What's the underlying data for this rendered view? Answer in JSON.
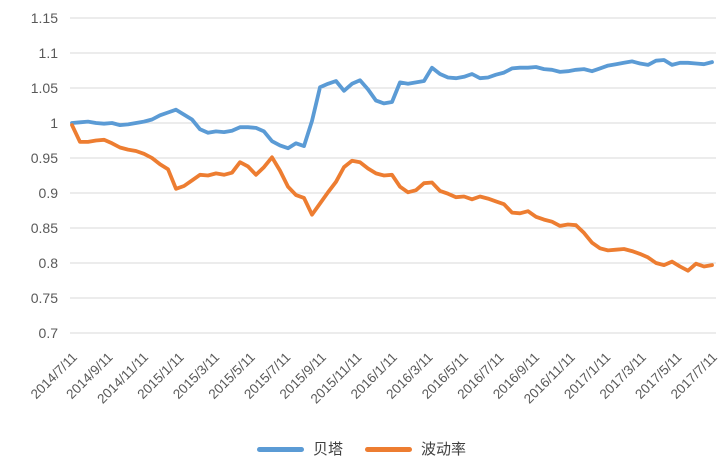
{
  "chart_data": {
    "type": "line",
    "title": "",
    "ylim": [
      0.7,
      1.15
    ],
    "y_ticks": [
      1.15,
      1.1,
      1.05,
      1,
      0.95,
      0.9,
      0.85,
      0.8,
      0.75,
      0.7
    ],
    "x_tick_labels": [
      "2014/7/11",
      "2014/9/11",
      "2014/11/11",
      "2015/1/11",
      "2015/3/11",
      "2015/5/11",
      "2015/7/11",
      "2015/9/11",
      "2015/11/11",
      "2016/1/11",
      "2016/3/11",
      "2016/5/11",
      "2016/7/11",
      "2016/9/11",
      "2016/11/11",
      "2017/1/11",
      "2017/3/11",
      "2017/5/11",
      "2017/7/11"
    ],
    "grid": true,
    "legend_position": "bottom",
    "series": [
      {
        "key": "beta",
        "name": "贝塔",
        "color": "#5B9BD5",
        "values": [
          1.0,
          1.001,
          1.002,
          1.0,
          0.999,
          1.0,
          0.997,
          0.998,
          1.0,
          1.002,
          1.005,
          1.011,
          1.015,
          1.019,
          1.012,
          1.005,
          0.991,
          0.986,
          0.988,
          0.987,
          0.989,
          0.994,
          0.994,
          0.993,
          0.988,
          0.974,
          0.968,
          0.964,
          0.971,
          0.967,
          1.003,
          1.051,
          1.056,
          1.06,
          1.046,
          1.056,
          1.061,
          1.048,
          1.032,
          1.028,
          1.03,
          1.058,
          1.056,
          1.058,
          1.06,
          1.079,
          1.07,
          1.065,
          1.064,
          1.066,
          1.07,
          1.064,
          1.065,
          1.069,
          1.072,
          1.078,
          1.079,
          1.079,
          1.08,
          1.077,
          1.076,
          1.073,
          1.074,
          1.076,
          1.077,
          1.074,
          1.078,
          1.082,
          1.084,
          1.086,
          1.088,
          1.085,
          1.083,
          1.089,
          1.09,
          1.083,
          1.086,
          1.086,
          1.085,
          1.084,
          1.087
        ]
      },
      {
        "key": "volatility",
        "name": "波动率",
        "color": "#ED7D31",
        "values": [
          0.997,
          0.973,
          0.973,
          0.975,
          0.976,
          0.971,
          0.965,
          0.962,
          0.96,
          0.956,
          0.95,
          0.941,
          0.934,
          0.906,
          0.91,
          0.918,
          0.926,
          0.925,
          0.928,
          0.926,
          0.929,
          0.944,
          0.938,
          0.926,
          0.937,
          0.951,
          0.932,
          0.909,
          0.897,
          0.893,
          0.869,
          0.885,
          0.901,
          0.916,
          0.937,
          0.946,
          0.944,
          0.935,
          0.928,
          0.925,
          0.926,
          0.909,
          0.901,
          0.904,
          0.914,
          0.915,
          0.903,
          0.899,
          0.894,
          0.895,
          0.891,
          0.895,
          0.892,
          0.888,
          0.884,
          0.872,
          0.871,
          0.874,
          0.866,
          0.862,
          0.859,
          0.853,
          0.855,
          0.854,
          0.843,
          0.829,
          0.821,
          0.818,
          0.819,
          0.82,
          0.817,
          0.813,
          0.808,
          0.8,
          0.797,
          0.802,
          0.795,
          0.789,
          0.799,
          0.795,
          0.797
        ]
      }
    ]
  },
  "colors": {
    "gridline": "#D9D9D9",
    "axis_label": "#595959",
    "legend_text": "#404040",
    "background": "#FFFFFF"
  }
}
